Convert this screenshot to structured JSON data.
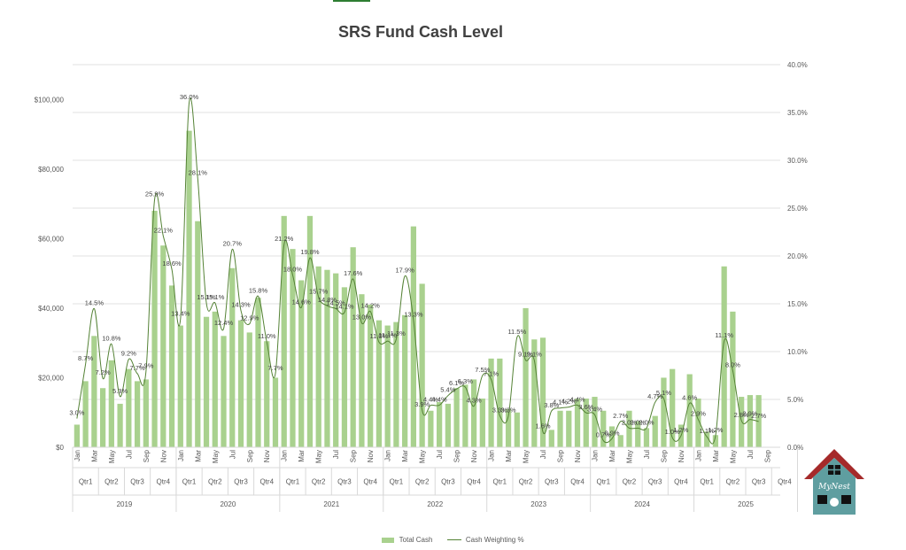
{
  "chart_data": {
    "type": "bar",
    "title": "SRS Fund Cash Level",
    "bar_color": "#a9d18e",
    "line_color": "#548235",
    "left_axis": {
      "min": 0,
      "max": 110000,
      "ticks": [
        "$0",
        "$20,000",
        "$40,000",
        "$60,000",
        "$80,000",
        "$100,000"
      ]
    },
    "right_axis": {
      "min": 0,
      "max": 40,
      "ticks": [
        "0.0%",
        "5.0%",
        "10.0%",
        "15.0%",
        "20.0%",
        "25.0%",
        "30.0%",
        "35.0%",
        "40.0%"
      ]
    },
    "months": [
      "Jan",
      "Mar",
      "May",
      "Jul",
      "Sep",
      "Nov"
    ],
    "quarters": [
      "Qtr1",
      "Qtr2",
      "Qtr3",
      "Qtr4"
    ],
    "years": [
      "2019",
      "2020",
      "2021",
      "2022",
      "2023",
      "2024",
      "2025"
    ],
    "series": [
      {
        "name": "Total Cash",
        "values": [
          6500,
          19000,
          32000,
          17000,
          25000,
          12500,
          22500,
          19000,
          19500,
          68000,
          58000,
          46500,
          35000,
          91000,
          65000,
          37500,
          39000,
          32000,
          51500,
          36500,
          33000,
          43000,
          30500,
          20000,
          66500,
          57000,
          48000,
          66500,
          52000,
          51000,
          50000,
          46000,
          57500,
          44000,
          41000,
          36500,
          35000,
          36000,
          38000,
          63500,
          47000,
          10500,
          13000,
          12500,
          17000,
          18000,
          19500,
          14000,
          25500,
          25500,
          11000,
          10000,
          40000,
          31000,
          31500,
          5000,
          10500,
          10500,
          14000,
          14000,
          14500,
          10500,
          6000,
          3500,
          10500,
          7500,
          5500,
          9000,
          20000,
          22500,
          6500,
          21000,
          14000,
          4500,
          3500,
          52000,
          39000,
          14500,
          15000,
          15000,
          null,
          null
        ]
      },
      {
        "name": "Cash Weighting %",
        "values": [
          3.0,
          8.7,
          14.5,
          7.2,
          10.8,
          5.3,
          9.2,
          7.7,
          7.9,
          25.9,
          22.1,
          18.6,
          13.4,
          36.0,
          28.1,
          15.1,
          15.1,
          12.4,
          20.7,
          14.3,
          12.9,
          15.8,
          11.0,
          7.7,
          21.2,
          18.0,
          14.6,
          19.8,
          15.7,
          14.8,
          14.5,
          14.1,
          17.6,
          13.0,
          14.2,
          11.0,
          11.1,
          11.3,
          17.9,
          13.3,
          3.9,
          4.4,
          4.4,
          5.4,
          6.1,
          6.3,
          4.3,
          7.5,
          7.1,
          3.3,
          3.3,
          11.5,
          9.1,
          9.1,
          1.6,
          3.8,
          4.1,
          4.2,
          4.4,
          3.6,
          3.4,
          0.7,
          0.9,
          2.7,
          2.0,
          2.0,
          2.0,
          4.7,
          5.1,
          1.0,
          1.2,
          4.6,
          2.9,
          1.1,
          1.2,
          11.1,
          8.0,
          2.8,
          2.9,
          2.7,
          null,
          null
        ]
      }
    ],
    "data_labels": [
      "3.0%",
      "8.7%",
      "14.5%",
      "7.2%",
      "10.8%",
      "5.3%",
      "9.2%",
      "7.7%",
      "7.9%",
      "25.9%",
      "22.1%",
      "18.6%",
      "13.4%",
      "36.0%",
      "28.1%",
      "15.1%",
      "15.1%",
      "12.4%",
      "20.7%",
      "14.3%",
      "12.9%",
      "15.8%",
      "11.0%",
      "7.7%",
      "21.2%",
      "18.0%",
      "14.6%",
      "19.8%",
      "15.7%",
      "14.8%",
      "14.5%",
      "14.1%",
      "17.6%",
      "13.0%",
      "14.2%",
      "11.0%",
      "11.1%",
      "11.3%",
      "17.9%",
      "13.3%",
      "3.9%",
      "4.4%",
      "4.4%",
      "5.4%",
      "6.1%",
      "6.3%",
      "4.3%",
      "7.5%",
      "7.1%",
      "3.3%",
      "3.3%",
      "11.5%",
      "9.1%",
      "9.1%",
      "1.6%",
      "3.8%",
      "4.1%",
      "4.2%",
      "4.4%",
      "3.6%",
      "3.4%",
      "0.7%",
      "0.9%",
      "2.7%",
      "2.0%",
      "2.0%",
      "2.0%",
      "4.7%",
      "5.1%",
      "1.0%",
      "1.2%",
      "4.6%",
      "2.9%",
      "1.1%",
      "1.2%",
      "11.1%",
      "8.0%",
      "2.8%",
      "2.9%",
      "2.7%",
      "",
      ""
    ],
    "legend": [
      "Total Cash",
      "Cash Weighting %"
    ],
    "legend_position": "bottom",
    "grid": true
  },
  "logo": {
    "text": "MyNest",
    "roof_color": "#a52a2a",
    "body_color": "#5f9ea0"
  }
}
